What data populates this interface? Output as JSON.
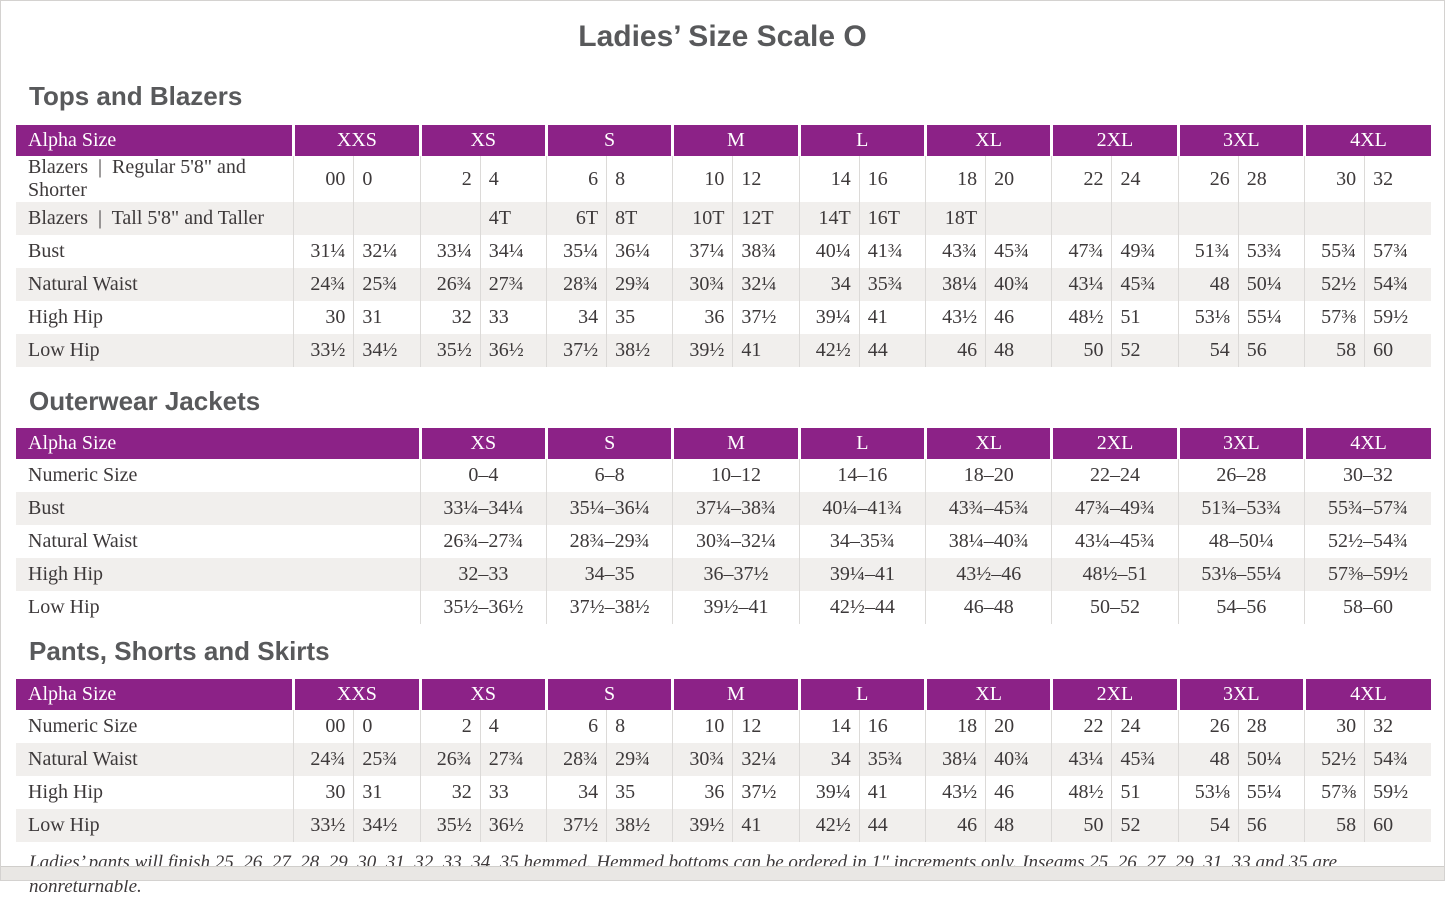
{
  "page": {
    "title": "Ladies’ Size Scale O",
    "footnote": "Ladies’ pants will finish 25, 26, 27, 28, 29, 30, 31, 32, 33, 34, 35 hemmed. Hemmed bottoms can be ordered in 1″ increments only. Inseams 25, 26, 27, 29, 31, 33 and 35 are nonreturnable."
  },
  "colors": {
    "header_purple": "#8c2287",
    "stripe_gray": "#f1efed",
    "heading_gray": "#58595b",
    "body_text": "#3d393a"
  },
  "tables": [
    {
      "id": "tops-and-blazers",
      "heading": "Tops and Blazers",
      "layout": "paired",
      "corner_label": "Alpha Size",
      "size_headers": [
        "XXS",
        "XS",
        "S",
        "M",
        "L",
        "XL",
        "2XL",
        "3XL",
        "4XL"
      ],
      "rows": [
        {
          "label": "Blazers  |  Regular 5'8\" and Shorter",
          "cells": [
            [
              "00",
              "0"
            ],
            [
              "2",
              "4"
            ],
            [
              "6",
              "8"
            ],
            [
              "10",
              "12"
            ],
            [
              "14",
              "16"
            ],
            [
              "18",
              "20"
            ],
            [
              "22",
              "24"
            ],
            [
              "26",
              "28"
            ],
            [
              "30",
              "32"
            ]
          ]
        },
        {
          "label": "Blazers  |  Tall 5'8\" and Taller",
          "cells": [
            [
              "",
              ""
            ],
            [
              "",
              "4T"
            ],
            [
              "6T",
              "8T"
            ],
            [
              "10T",
              "12T"
            ],
            [
              "14T",
              "16T"
            ],
            [
              "18T",
              ""
            ],
            [
              "",
              ""
            ],
            [
              "",
              ""
            ],
            [
              "",
              ""
            ]
          ]
        },
        {
          "label": "Bust",
          "cells": [
            [
              "31¼",
              "32¼"
            ],
            [
              "33¼",
              "34¼"
            ],
            [
              "35¼",
              "36¼"
            ],
            [
              "37¼",
              "38¾"
            ],
            [
              "40¼",
              "41¾"
            ],
            [
              "43¾",
              "45¾"
            ],
            [
              "47¾",
              "49¾"
            ],
            [
              "51¾",
              "53¾"
            ],
            [
              "55¾",
              "57¾"
            ]
          ]
        },
        {
          "label": "Natural Waist",
          "cells": [
            [
              "24¾",
              "25¾"
            ],
            [
              "26¾",
              "27¾"
            ],
            [
              "28¾",
              "29¾"
            ],
            [
              "30¾",
              "32¼"
            ],
            [
              "34",
              "35¾"
            ],
            [
              "38¼",
              "40¾"
            ],
            [
              "43¼",
              "45¾"
            ],
            [
              "48",
              "50¼"
            ],
            [
              "52½",
              "54¾"
            ]
          ]
        },
        {
          "label": "High Hip",
          "cells": [
            [
              "30",
              "31"
            ],
            [
              "32",
              "33"
            ],
            [
              "34",
              "35"
            ],
            [
              "36",
              "37½"
            ],
            [
              "39¼",
              "41"
            ],
            [
              "43½",
              "46"
            ],
            [
              "48½",
              "51"
            ],
            [
              "53⅛",
              "55¼"
            ],
            [
              "57⅜",
              "59½"
            ]
          ]
        },
        {
          "label": "Low Hip",
          "cells": [
            [
              "33½",
              "34½"
            ],
            [
              "35½",
              "36½"
            ],
            [
              "37½",
              "38½"
            ],
            [
              "39½",
              "41"
            ],
            [
              "42½",
              "44"
            ],
            [
              "46",
              "48"
            ],
            [
              "50",
              "52"
            ],
            [
              "54",
              "56"
            ],
            [
              "58",
              "60"
            ]
          ]
        }
      ]
    },
    {
      "id": "outerwear-jackets",
      "heading": "Outerwear Jackets",
      "layout": "single",
      "corner_label": "Alpha Size",
      "size_headers": [
        "XS",
        "S",
        "M",
        "L",
        "XL",
        "2XL",
        "3XL",
        "4XL"
      ],
      "rows": [
        {
          "label": "Numeric Size",
          "cells": [
            "0–4",
            "6–8",
            "10–12",
            "14–16",
            "18–20",
            "22–24",
            "26–28",
            "30–32"
          ]
        },
        {
          "label": "Bust",
          "cells": [
            "33¼–34¼",
            "35¼–36¼",
            "37¼–38¾",
            "40¼–41¾",
            "43¾–45¾",
            "47¾–49¾",
            "51¾–53¾",
            "55¾–57¾"
          ]
        },
        {
          "label": "Natural Waist",
          "cells": [
            "26¾–27¾",
            "28¾–29¾",
            "30¾–32¼",
            "34–35¾",
            "38¼–40¾",
            "43¼–45¾",
            "48–50¼",
            "52½–54¾"
          ]
        },
        {
          "label": "High Hip",
          "cells": [
            "32–33",
            "34–35",
            "36–37½",
            "39¼–41",
            "43½–46",
            "48½–51",
            "53⅛–55¼",
            "57⅜–59½"
          ]
        },
        {
          "label": "Low Hip",
          "cells": [
            "35½–36½",
            "37½–38½",
            "39½–41",
            "42½–44",
            "46–48",
            "50–52",
            "54–56",
            "58–60"
          ]
        }
      ]
    },
    {
      "id": "pants-shorts-and-skirts",
      "heading": "Pants, Shorts and Skirts",
      "layout": "paired",
      "corner_label": "Alpha Size",
      "size_headers": [
        "XXS",
        "XS",
        "S",
        "M",
        "L",
        "XL",
        "2XL",
        "3XL",
        "4XL"
      ],
      "rows": [
        {
          "label": "Numeric Size",
          "cells": [
            [
              "00",
              "0"
            ],
            [
              "2",
              "4"
            ],
            [
              "6",
              "8"
            ],
            [
              "10",
              "12"
            ],
            [
              "14",
              "16"
            ],
            [
              "18",
              "20"
            ],
            [
              "22",
              "24"
            ],
            [
              "26",
              "28"
            ],
            [
              "30",
              "32"
            ]
          ]
        },
        {
          "label": "Natural Waist",
          "cells": [
            [
              "24¾",
              "25¾"
            ],
            [
              "26¾",
              "27¾"
            ],
            [
              "28¾",
              "29¾"
            ],
            [
              "30¾",
              "32¼"
            ],
            [
              "34",
              "35¾"
            ],
            [
              "38¼",
              "40¾"
            ],
            [
              "43¼",
              "45¾"
            ],
            [
              "48",
              "50¼"
            ],
            [
              "52½",
              "54¾"
            ]
          ]
        },
        {
          "label": "High Hip",
          "cells": [
            [
              "30",
              "31"
            ],
            [
              "32",
              "33"
            ],
            [
              "34",
              "35"
            ],
            [
              "36",
              "37½"
            ],
            [
              "39¼",
              "41"
            ],
            [
              "43½",
              "46"
            ],
            [
              "48½",
              "51"
            ],
            [
              "53⅛",
              "55¼"
            ],
            [
              "57⅜",
              "59½"
            ]
          ]
        },
        {
          "label": "Low Hip",
          "cells": [
            [
              "33½",
              "34½"
            ],
            [
              "35½",
              "36½"
            ],
            [
              "37½",
              "38½"
            ],
            [
              "39½",
              "41"
            ],
            [
              "42½",
              "44"
            ],
            [
              "46",
              "48"
            ],
            [
              "50",
              "52"
            ],
            [
              "54",
              "56"
            ],
            [
              "58",
              "60"
            ]
          ]
        }
      ]
    }
  ]
}
